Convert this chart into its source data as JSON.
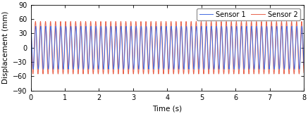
{
  "t_start": 0,
  "t_end": 8,
  "n_points": 8000,
  "sensor1_amplitude": 45,
  "sensor2_amplitude": 55,
  "sensor1_freq": 6.8,
  "sensor2_freq": 6.8,
  "sensor1_phase": 1.5707963,
  "sensor2_phase": 1.9,
  "sensor1_color": "#4169E1",
  "sensor2_color": "#E8614A",
  "ylabel": "Displacement (mm)",
  "xlabel": "Time (s)",
  "ylim": [
    -90,
    90
  ],
  "xlim": [
    0,
    8
  ],
  "yticks": [
    -90,
    -60,
    -30,
    0,
    30,
    60,
    90
  ],
  "xticks": [
    0,
    1,
    2,
    3,
    4,
    5,
    6,
    7,
    8
  ],
  "legend_sensor1": "Sensor 1",
  "legend_sensor2": "Sensor 2",
  "linewidth": 0.7,
  "figwidth": 4.37,
  "figheight": 1.62,
  "dpi": 100,
  "tick_labelsize": 7,
  "axis_labelsize": 7.5,
  "legend_fontsize": 7
}
